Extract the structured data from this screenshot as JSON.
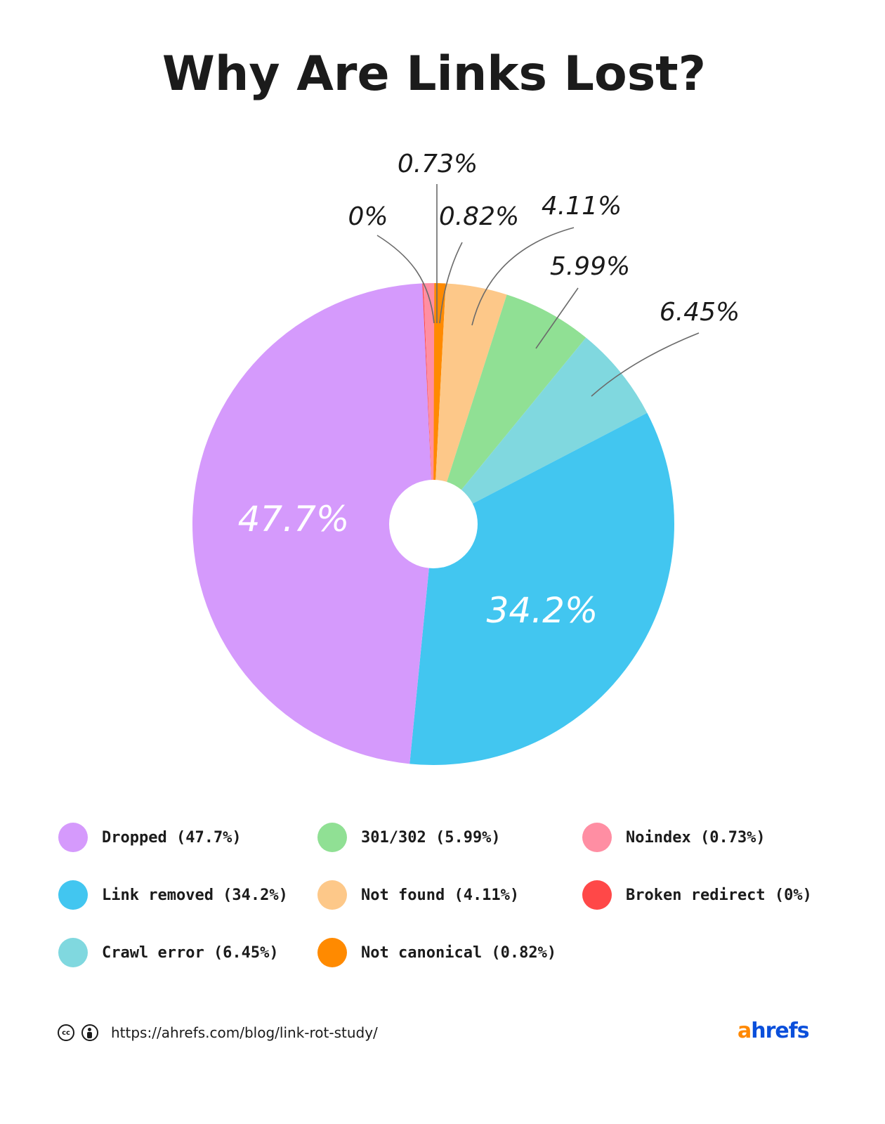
{
  "title": "Why Are Links Lost?",
  "chart_data": {
    "type": "pie",
    "variant": "donut",
    "title": "Why Are Links Lost?",
    "start_angle": "12 o'clock, clockwise",
    "categories": [
      "Not canonical",
      "Not found",
      "301/302",
      "Crawl error",
      "Link removed",
      "Dropped",
      "Broken redirect",
      "Noindex"
    ],
    "values": [
      0.82,
      4.11,
      5.99,
      6.45,
      34.2,
      47.7,
      0,
      0.73
    ],
    "colors": [
      "#ff8a00",
      "#fdc889",
      "#90e094",
      "#80d8df",
      "#42c6f0",
      "#d59afc",
      "#ff4848",
      "#ff8ea3"
    ],
    "value_labels": [
      "0.82%",
      "4.11%",
      "5.99%",
      "6.45%",
      "34.2%",
      "47.7%",
      "0%",
      "0.73%"
    ],
    "legend_position": "bottom",
    "grid": false
  },
  "callouts": {
    "noindex": "0.73%",
    "broken_redirect": "0%",
    "not_canonical": "0.82%",
    "not_found": "4.11%",
    "redirect_301_302": "5.99%",
    "crawl_error": "6.45%",
    "dropped": "47.7%",
    "link_removed": "34.2%"
  },
  "legend": [
    {
      "label": "Dropped (47.7%)",
      "color": "#d59afc"
    },
    {
      "label": "Link removed (34.2%)",
      "color": "#42c6f0"
    },
    {
      "label": "Crawl error (6.45%)",
      "color": "#80d8df"
    },
    {
      "label": "301/302 (5.99%)",
      "color": "#90e094"
    },
    {
      "label": "Not found (4.11%)",
      "color": "#fdc889"
    },
    {
      "label": "Not canonical (0.82%)",
      "color": "#ff8a00"
    },
    {
      "label": "Noindex (0.73%)",
      "color": "#ff8ea3"
    },
    {
      "label": "Broken redirect (0%)",
      "color": "#ff4848"
    }
  ],
  "footer": {
    "cc_icon": "creative-commons-icon",
    "cc_text": "cc",
    "by_icon": "attribution-icon",
    "url": "https://ahrefs.com/blog/link-rot-study/"
  },
  "logo": {
    "first": "a",
    "rest": "hrefs"
  }
}
